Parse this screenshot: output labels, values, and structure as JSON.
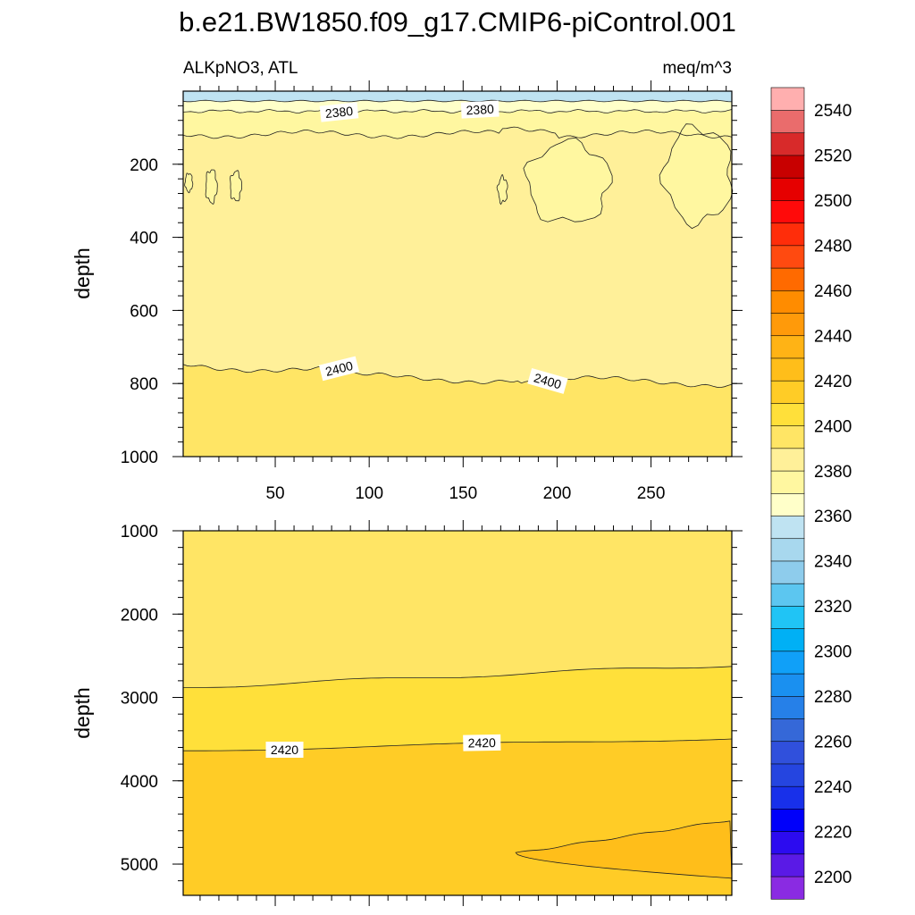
{
  "chart_data": {
    "type": "contour",
    "title": "b.e21.BW1850.f09_g17.CMIP6-piControl.001",
    "left_string": "ALKpNO3, ATL",
    "right_string": "meq/m^3",
    "x_ticks": [
      50,
      100,
      150,
      200,
      250
    ],
    "xlim": [
      1,
      293
    ],
    "colorbar": {
      "levels": [
        2200,
        2210,
        2220,
        2230,
        2240,
        2250,
        2260,
        2270,
        2280,
        2290,
        2300,
        2310,
        2320,
        2330,
        2340,
        2350,
        2360,
        2370,
        2380,
        2390,
        2400,
        2410,
        2420,
        2430,
        2440,
        2450,
        2460,
        2470,
        2480,
        2490,
        2500,
        2510,
        2520,
        2530,
        2540,
        2550
      ],
      "labels": [
        "2200",
        "2220",
        "2240",
        "2260",
        "2280",
        "2300",
        "2320",
        "2340",
        "2360",
        "2380",
        "2400",
        "2420",
        "2440",
        "2460",
        "2480",
        "2500",
        "2520",
        "2540"
      ],
      "colors": [
        "#8A2BE2",
        "#5A1AE6",
        "#2C0BF0",
        "#0000FA",
        "#1830EA",
        "#2545E0",
        "#3050DC",
        "#3568D8",
        "#2680E8",
        "#1A90F0",
        "#10A0F8",
        "#00B0F5",
        "#20C4F5",
        "#5CC6F0",
        "#8ECCEC",
        "#A8D8EE",
        "#BFE3F2",
        "#FFFFC9",
        "#FFF7A0",
        "#FFF099",
        "#FFE565",
        "#FFE03A",
        "#FFCC26",
        "#FFBE1A",
        "#FFB315",
        "#FF9A0A",
        "#FF8C00",
        "#FF6A00",
        "#FF4A10",
        "#FF2D0A",
        "#FF0A0A",
        "#E60000",
        "#C80000",
        "#D82A2A",
        "#EA6C6C",
        "#FFAFAF"
      ]
    },
    "panels": [
      {
        "ylabel": "depth",
        "ylim": [
          0,
          1000
        ],
        "y_ticks": [
          200,
          400,
          600,
          800,
          1000
        ],
        "contour_labels": [
          "2380",
          "2380",
          "2400",
          "2400"
        ],
        "contour_levels": [
          2370,
          2380,
          2390,
          2400
        ]
      },
      {
        "ylabel": "depth",
        "ylim": [
          1000,
          5375
        ],
        "y_ticks": [
          1000,
          2000,
          3000,
          4000,
          5000
        ],
        "contour_labels": [
          "2420",
          "2420"
        ],
        "contour_levels": [
          2410,
          2420,
          2430
        ]
      }
    ]
  }
}
